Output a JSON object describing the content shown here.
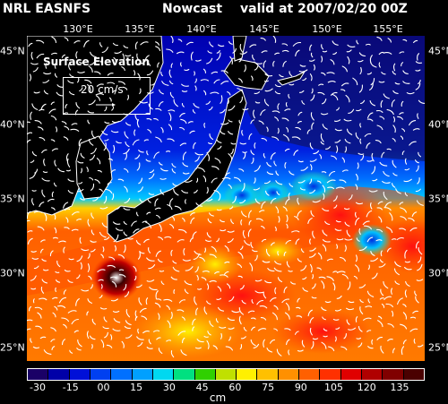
{
  "header": {
    "source": "NRL EASNFS",
    "product": "Nowcast",
    "valid": "valid at 2007/02/20 00Z"
  },
  "axes": {
    "longitudes": [
      "130°E",
      "135°E",
      "140°E",
      "145°E",
      "150°E",
      "155°E"
    ],
    "latitudes": [
      "45°N",
      "40°N",
      "35°N",
      "30°N",
      "25°N"
    ]
  },
  "inset": {
    "title": "Surface Elevation",
    "scale_label": "20 cm/s"
  },
  "colorbar": {
    "ticks": [
      "-30",
      "-15",
      "00",
      "15",
      "30",
      "45",
      "60",
      "75",
      "90",
      "105",
      "120",
      "135"
    ],
    "unit": "cm",
    "colors": [
      "#1a0066",
      "#0000a8",
      "#0010d8",
      "#0040f0",
      "#0070ff",
      "#00a0ff",
      "#00d8f0",
      "#00e080",
      "#30d000",
      "#c0e000",
      "#fff000",
      "#ffc000",
      "#ff9000",
      "#ff6000",
      "#ff3000",
      "#e00000",
      "#b00000",
      "#800000",
      "#4a0000"
    ]
  }
}
